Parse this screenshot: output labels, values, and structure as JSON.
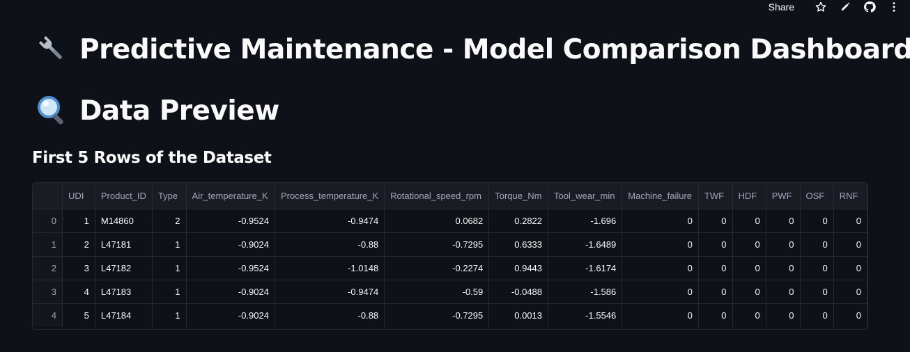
{
  "toolbar": {
    "share_label": "Share",
    "icons": [
      "star-icon",
      "edit-pencil-icon",
      "github-icon",
      "more-vertical-icon"
    ]
  },
  "page": {
    "title": "Predictive Maintenance - Model Comparison Dashboard",
    "title_icon": "wrench-icon",
    "section_title": "Data Preview",
    "section_icon": "magnifier-icon",
    "subheader": "First 5 Rows of the Dataset"
  },
  "table": {
    "columns": [
      "",
      "UDI",
      "Product_ID",
      "Type",
      "Air_temperature_K",
      "Process_temperature_K",
      "Rotational_speed_rpm",
      "Torque_Nm",
      "Tool_wear_min",
      "Machine_failure",
      "TWF",
      "HDF",
      "PWF",
      "OSF",
      "RNF"
    ],
    "rows": [
      [
        "0",
        "1",
        "M14860",
        "2",
        "-0.9524",
        "-0.9474",
        "0.0682",
        "0.2822",
        "-1.696",
        "0",
        "0",
        "0",
        "0",
        "0",
        "0"
      ],
      [
        "1",
        "2",
        "L47181",
        "1",
        "-0.9024",
        "-0.88",
        "-0.7295",
        "0.6333",
        "-1.6489",
        "0",
        "0",
        "0",
        "0",
        "0",
        "0"
      ],
      [
        "2",
        "3",
        "L47182",
        "1",
        "-0.9524",
        "-1.0148",
        "-0.2274",
        "0.9443",
        "-1.6174",
        "0",
        "0",
        "0",
        "0",
        "0",
        "0"
      ],
      [
        "3",
        "4",
        "L47183",
        "1",
        "-0.9024",
        "-0.9474",
        "-0.59",
        "-0.0488",
        "-1.586",
        "0",
        "0",
        "0",
        "0",
        "0",
        "0"
      ],
      [
        "4",
        "5",
        "L47184",
        "1",
        "-0.9024",
        "-0.88",
        "-0.7295",
        "0.0013",
        "-1.5546",
        "0",
        "0",
        "0",
        "0",
        "0",
        "0"
      ]
    ]
  },
  "colors": {
    "background": "#0e1117",
    "header_bg": "#1a1c24",
    "border": "#262a33",
    "text": "#fafafa",
    "muted_text": "#a3a8b8"
  }
}
